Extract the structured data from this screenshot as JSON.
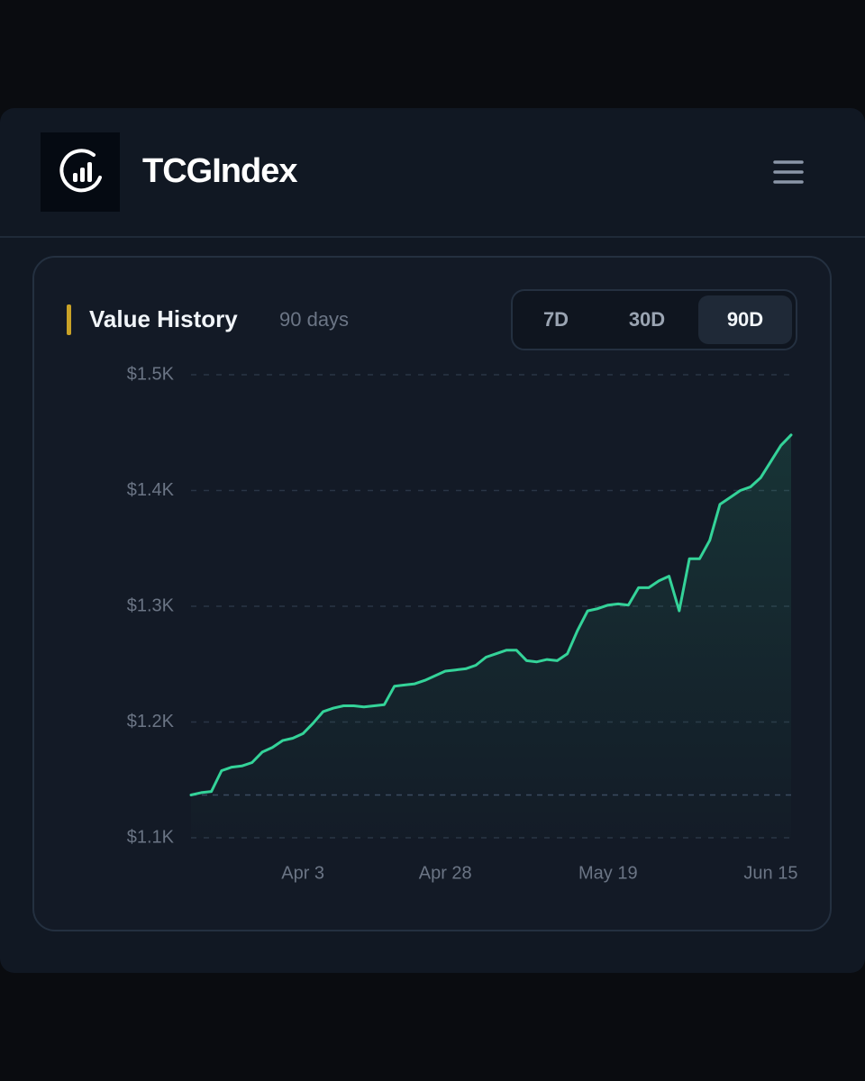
{
  "header": {
    "brand": "TCGIndex"
  },
  "panel": {
    "title": "Value History",
    "subtitle": "90 days",
    "tabs": [
      "7D",
      "30D",
      "90D"
    ],
    "active_tab": "90D"
  },
  "chart_data": {
    "type": "line",
    "categories": [
      null,
      null,
      null,
      null,
      null,
      null,
      null,
      null,
      null,
      null,
      null,
      "Apr 3",
      null,
      null,
      null,
      null,
      null,
      null,
      null,
      null,
      null,
      null,
      null,
      null,
      null,
      "Apr 28",
      null,
      null,
      null,
      null,
      null,
      null,
      null,
      null,
      null,
      null,
      null,
      null,
      null,
      null,
      null,
      "May 19",
      null,
      null,
      null,
      null,
      null,
      null,
      null,
      null,
      null,
      null,
      null,
      null,
      null,
      null,
      null,
      "Jun 15",
      null,
      null
    ],
    "values": [
      1137,
      1139,
      1140,
      1158,
      1161,
      1162,
      1165,
      1174,
      1178,
      1184,
      1186,
      1190,
      1199,
      1209,
      1212,
      1214,
      1214,
      1213,
      1214,
      1215,
      1231,
      1232,
      1233,
      1236,
      1240,
      1244,
      1245,
      1246,
      1249,
      1256,
      1259,
      1262,
      1262,
      1253,
      1252,
      1254,
      1253,
      1259,
      1279,
      1296,
      1298,
      1301,
      1302,
      1301,
      1316,
      1316,
      1322,
      1326,
      1296,
      1341,
      1341,
      1357,
      1388,
      1394,
      1400,
      1403,
      1411,
      1425,
      1439,
      1448
    ],
    "color": "#34d399",
    "ylim": [
      1100,
      1500
    ],
    "yticks": [
      {
        "value": 1100,
        "label": "$1.1K"
      },
      {
        "value": 1200,
        "label": "$1.2K"
      },
      {
        "value": 1300,
        "label": "$1.3K"
      },
      {
        "value": 1400,
        "label": "$1.4K"
      },
      {
        "value": 1500,
        "label": "$1.5K"
      }
    ],
    "grid": true,
    "reference_line": 1137
  }
}
